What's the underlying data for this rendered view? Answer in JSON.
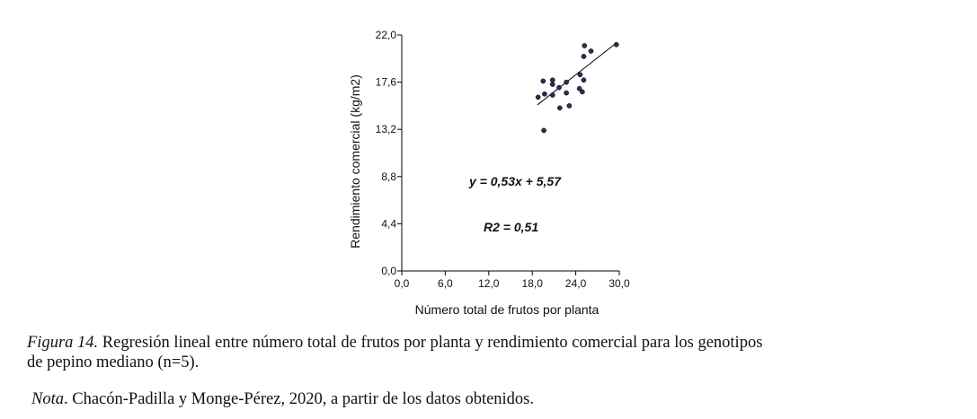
{
  "chart_data": {
    "type": "scatter",
    "xlabel": "Número total de frutos por planta",
    "ylabel": "Rendimiento comercial (kg/m2)",
    "xlim": [
      0,
      30
    ],
    "ylim": [
      0,
      22
    ],
    "xticks": [
      "0,0",
      "6,0",
      "12,0",
      "18,0",
      "24,0",
      "30,0"
    ],
    "yticks": [
      "0,0",
      "4,4",
      "8,8",
      "13,2",
      "17,6",
      "22,0"
    ],
    "grid": false,
    "points": [
      [
        29.6,
        21.1
      ],
      [
        25.2,
        21.0
      ],
      [
        26.1,
        20.5
      ],
      [
        25.1,
        20.0
      ],
      [
        24.6,
        18.3
      ],
      [
        25.1,
        17.8
      ],
      [
        19.5,
        17.7
      ],
      [
        20.8,
        17.8
      ],
      [
        20.8,
        17.4
      ],
      [
        22.7,
        17.6
      ],
      [
        21.7,
        17.1
      ],
      [
        24.5,
        17.0
      ],
      [
        24.9,
        16.7
      ],
      [
        22.7,
        16.6
      ],
      [
        19.7,
        16.5
      ],
      [
        20.8,
        16.4
      ],
      [
        18.8,
        16.2
      ],
      [
        23.1,
        15.4
      ],
      [
        21.8,
        15.2
      ],
      [
        19.6,
        13.1
      ]
    ],
    "fit": {
      "slope": 0.53,
      "intercept": 5.57,
      "x_range": [
        18.7,
        29.6
      ]
    },
    "annotations": [
      "y = 0,53x + 5,57",
      "R2 = 0,51"
    ],
    "point_color": "#2a2f55"
  },
  "caption": {
    "figure_label": "Figura 14.",
    "text_line1": " Regresión lineal entre número total de frutos por planta y rendimiento comercial para los genotipos",
    "text_line2": "de pepino mediano (n=5).",
    "note_label": "Nota",
    "note_text": ". Chacón-Padilla y Monge-Pérez, 2020, a partir de los datos obtenidos."
  }
}
